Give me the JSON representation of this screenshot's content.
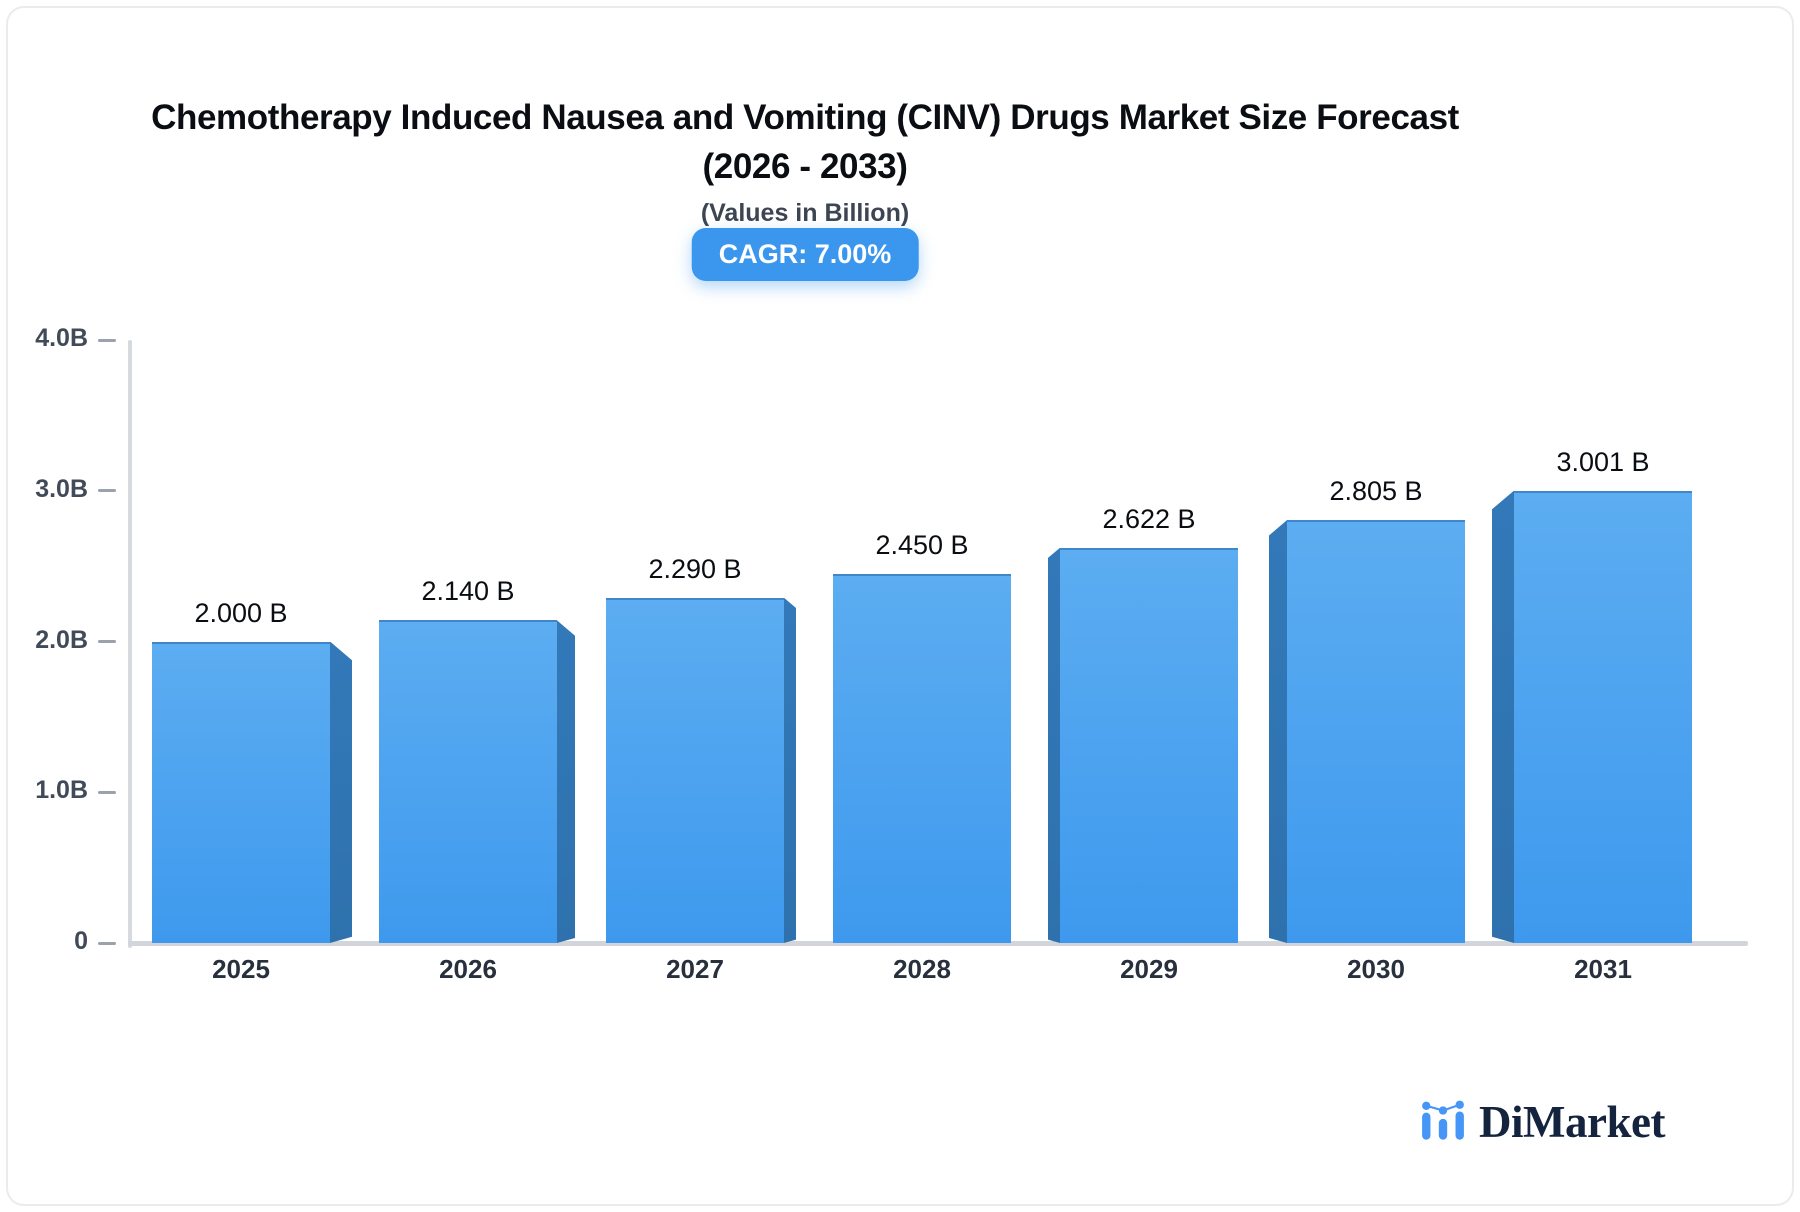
{
  "title_line1": "Chemotherapy Induced Nausea and Vomiting (CINV) Drugs Market Size Forecast",
  "title_line2": "(2026 - 2033)",
  "subtitle": "(Values in Billion)",
  "cagr_badge": "CAGR: 7.00%",
  "brand": {
    "name": "DiMarket"
  },
  "colors": {
    "accent": "#3b96ee",
    "bar_face_top": "#5cadf1",
    "bar_face_bottom": "#3e99ee",
    "bar_top_edge": "#4186c9",
    "bar_side_dark": "#2e71ad",
    "bar_side_light": "#3379b9",
    "axis_line": "#d6d9dd",
    "tick_dash": "#9aa2ad",
    "ytick_text": "#414a58",
    "xtick_text": "#28303d",
    "bar_label_text": "#0a0d12",
    "title_text": "#0a0d12",
    "subtitle_text": "#3d4553",
    "badge_bg": "#3b96ee",
    "badge_text": "#ffffff",
    "brand_text": "#14233e",
    "brand_icon_blue": "#4596f7"
  },
  "chart_data": {
    "type": "bar",
    "title": "Chemotherapy Induced Nausea and Vomiting (CINV) Drugs Market Size Forecast (2026 - 2033)",
    "subtitle": "(Values in Billion)",
    "cagr": "7.00%",
    "categories": [
      "2025",
      "2026",
      "2027",
      "2028",
      "2029",
      "2030",
      "2031"
    ],
    "values": [
      2.0,
      2.14,
      2.29,
      2.45,
      2.622,
      2.805,
      3.001
    ],
    "bar_labels": [
      "2.000 B",
      "2.140 B",
      "2.290 B",
      "2.450 B",
      "2.622 B",
      "2.805 B",
      "3.001 B"
    ],
    "yticks": [
      {
        "label": "4.0B",
        "value": 4.0
      },
      {
        "label": "3.0B",
        "value": 3.0
      },
      {
        "label": "2.0B",
        "value": 2.0
      },
      {
        "label": "1.0B",
        "value": 1.0
      },
      {
        "label": "0",
        "value": 0.0
      }
    ],
    "ylim": [
      0,
      4
    ],
    "grid": false,
    "legend": false
  }
}
